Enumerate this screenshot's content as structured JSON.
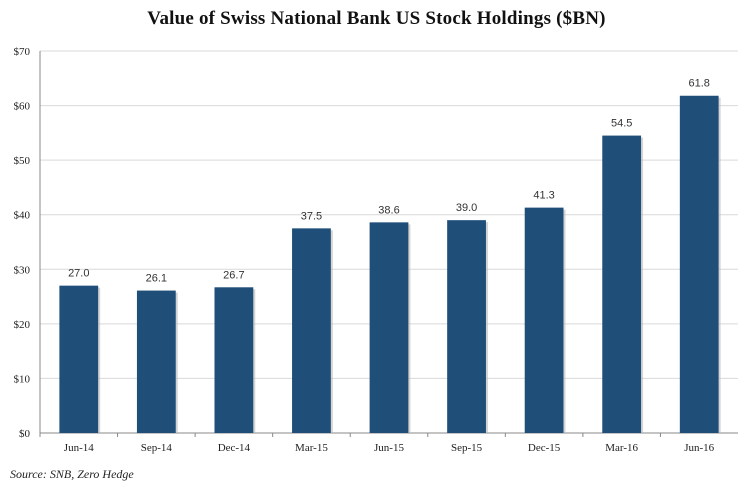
{
  "chart_data": {
    "type": "bar",
    "title": "Value of Swiss National Bank US Stock Holdings ($BN)",
    "categories": [
      "Jun-14",
      "Sep-14",
      "Dec-14",
      "Mar-15",
      "Jun-15",
      "Sep-15",
      "Dec-15",
      "Mar-16",
      "Jun-16"
    ],
    "values": [
      27.0,
      26.1,
      26.7,
      37.5,
      38.6,
      39.0,
      41.3,
      54.5,
      61.8
    ],
    "data_labels": [
      "27.0",
      "26.1",
      "26.7",
      "37.5",
      "38.6",
      "39.0",
      "41.3",
      "54.5",
      "61.8"
    ],
    "y_ticks": [
      0,
      10,
      20,
      30,
      40,
      50,
      60,
      70
    ],
    "y_tick_labels": [
      "$0",
      "$10",
      "$20",
      "$30",
      "$40",
      "$50",
      "$60",
      "$70"
    ],
    "ylim": [
      0,
      70
    ],
    "xlabel": "",
    "ylabel": "",
    "grid": true,
    "bar_color": "#1f4e79",
    "grid_color": "#d9d9d9"
  },
  "source": "Source: SNB, Zero Hedge"
}
